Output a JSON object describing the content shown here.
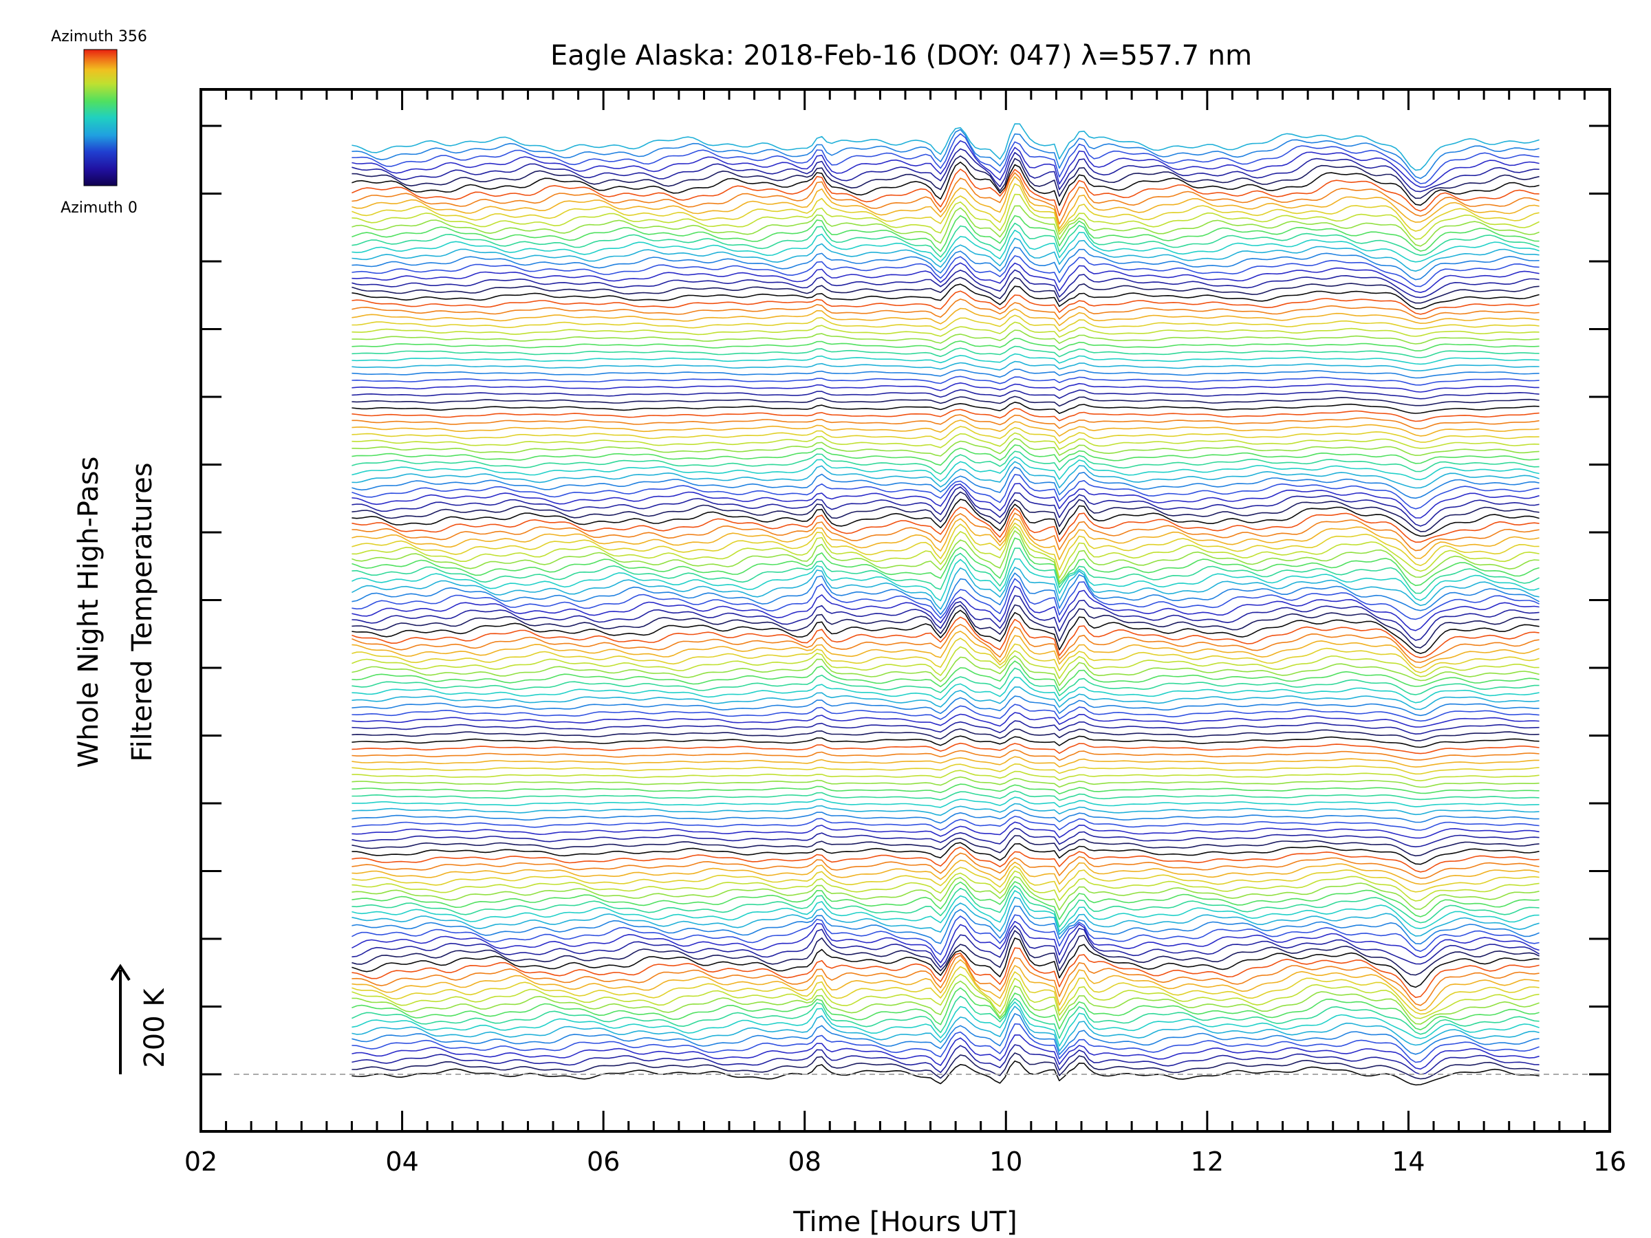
{
  "chart_data": {
    "type": "line",
    "title": "Eagle Alaska: 2018-Feb-16 (DOY: 047) λ=557.7 nm",
    "xlabel": "Time [Hours UT]",
    "ylabel_line1": "Whole Night High-Pass",
    "ylabel_line2": "Filtered Temperatures",
    "scale_bar_label": "200 K",
    "xlim": [
      2,
      16
    ],
    "x_ticks": [
      "02",
      "04",
      "06",
      "08",
      "10",
      "12",
      "14",
      "16"
    ],
    "grid": false,
    "colorbar": {
      "top_label": "Azimuth 356",
      "bottom_label": "Azimuth 0",
      "colors": [
        "#e82010",
        "#f07018",
        "#f0c020",
        "#c0e030",
        "#50e060",
        "#20d0c0",
        "#20a0e0",
        "#2040d0",
        "#2010a0",
        "#100050"
      ]
    },
    "series_note_count": 135,
    "series_colors_cycle": [
      "#0a0a0a",
      "#1a1a60",
      "#2020a0",
      "#2a2ac8",
      "#3050e0",
      "#2080e0",
      "#20b0d8",
      "#20d0c8",
      "#30d898",
      "#50e060",
      "#90e040",
      "#c0e030",
      "#e0d028",
      "#f0b020",
      "#f08018",
      "#f05010"
    ]
  }
}
